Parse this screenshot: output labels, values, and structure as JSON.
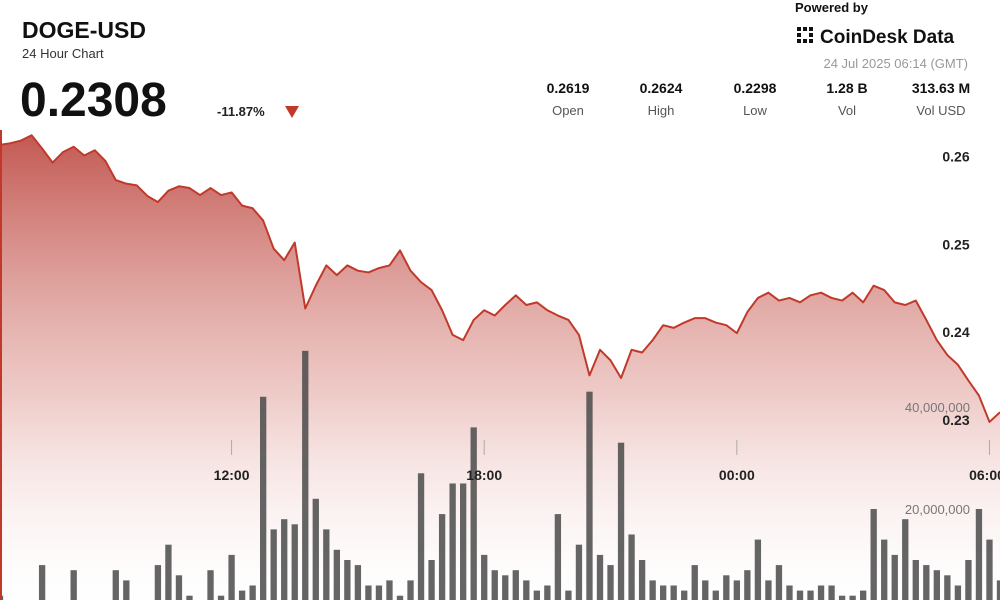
{
  "header": {
    "symbol": "DOGE-USD",
    "subtitle": "24 Hour Chart",
    "price": "0.2308",
    "change": "-11.87%",
    "powered_by": "Powered by",
    "brand": "CoinDesk Data",
    "timestamp": "24 Jul 2025 06:14 (GMT)",
    "stats": [
      {
        "value": "0.2619",
        "label": "Open"
      },
      {
        "value": "0.2624",
        "label": "High"
      },
      {
        "value": "0.2298",
        "label": "Low"
      },
      {
        "value": "1.28 B",
        "label": "Vol"
      },
      {
        "value": "313.63 M",
        "label": "Vol USD"
      }
    ]
  },
  "chart_data": {
    "type": "line",
    "x": [
      "06:30",
      "06:45",
      "07:00",
      "07:15",
      "07:30",
      "07:45",
      "08:00",
      "08:15",
      "08:30",
      "08:45",
      "09:00",
      "09:15",
      "09:30",
      "09:45",
      "10:00",
      "10:15",
      "10:30",
      "10:45",
      "11:00",
      "11:15",
      "11:30",
      "11:45",
      "12:00",
      "12:15",
      "12:30",
      "12:45",
      "13:00",
      "13:15",
      "13:30",
      "13:45",
      "14:00",
      "14:15",
      "14:30",
      "14:45",
      "15:00",
      "15:15",
      "15:30",
      "15:45",
      "16:00",
      "16:15",
      "16:30",
      "16:45",
      "17:00",
      "17:15",
      "17:30",
      "17:45",
      "18:00",
      "18:15",
      "18:30",
      "18:45",
      "19:00",
      "19:15",
      "19:30",
      "19:45",
      "20:00",
      "20:15",
      "20:30",
      "20:45",
      "21:00",
      "21:15",
      "21:30",
      "21:45",
      "22:00",
      "22:15",
      "22:30",
      "22:45",
      "23:00",
      "23:15",
      "23:30",
      "23:45",
      "00:00",
      "00:15",
      "00:30",
      "00:45",
      "01:00",
      "01:15",
      "01:30",
      "01:45",
      "02:00",
      "02:15",
      "02:30",
      "02:45",
      "03:00",
      "03:15",
      "03:30",
      "03:45",
      "04:00",
      "04:15",
      "04:30",
      "04:45",
      "05:00",
      "05:15",
      "05:30",
      "05:45",
      "06:00",
      "06:15"
    ],
    "series": [
      {
        "name": "Price",
        "type": "line",
        "axis": "y",
        "color": "#c0392b",
        "values": [
          0.2613,
          0.2615,
          0.2618,
          0.2624,
          0.2609,
          0.2593,
          0.2605,
          0.2611,
          0.2601,
          0.2607,
          0.2595,
          0.2573,
          0.2569,
          0.2567,
          0.2555,
          0.2548,
          0.2561,
          0.2566,
          0.2564,
          0.2556,
          0.2564,
          0.2556,
          0.2559,
          0.2544,
          0.2541,
          0.2527,
          0.2495,
          0.2482,
          0.2502,
          0.2427,
          0.2453,
          0.2476,
          0.2465,
          0.2476,
          0.247,
          0.2468,
          0.2473,
          0.2476,
          0.2493,
          0.247,
          0.2457,
          0.2448,
          0.2425,
          0.2397,
          0.2391,
          0.2414,
          0.2425,
          0.2419,
          0.2431,
          0.2442,
          0.2431,
          0.2434,
          0.2425,
          0.2419,
          0.2414,
          0.2397,
          0.2351,
          0.238,
          0.2368,
          0.2348,
          0.238,
          0.2377,
          0.2391,
          0.2408,
          0.2405,
          0.2411,
          0.2416,
          0.2416,
          0.2411,
          0.2408,
          0.2399,
          0.2423,
          0.2439,
          0.2445,
          0.2436,
          0.2439,
          0.2434,
          0.2442,
          0.2445,
          0.2439,
          0.2436,
          0.2445,
          0.2434,
          0.2453,
          0.2448,
          0.2434,
          0.2431,
          0.2436,
          0.2414,
          0.2391,
          0.2374,
          0.2363,
          0.2345,
          0.2328,
          0.2298,
          0.2309
        ]
      },
      {
        "name": "Volume",
        "type": "bar",
        "axis": "y2",
        "color": "#4a4a4a",
        "values": [
          3000000,
          2000000,
          1000000,
          2000000,
          9000000,
          2000000,
          1000000,
          8000000,
          1000000,
          1000000,
          1000000,
          8000000,
          6000000,
          2000000,
          2000000,
          9000000,
          13000000,
          7000000,
          3000000,
          1000000,
          8000000,
          3000000,
          11000000,
          4000000,
          5000000,
          42000000,
          16000000,
          18000000,
          17000000,
          51000000,
          22000000,
          16000000,
          12000000,
          10000000,
          9000000,
          5000000,
          5000000,
          6000000,
          3000000,
          6000000,
          27000000,
          10000000,
          19000000,
          25000000,
          25000000,
          36000000,
          11000000,
          8000000,
          7000000,
          8000000,
          6000000,
          4000000,
          5000000,
          19000000,
          4000000,
          13000000,
          43000000,
          11000000,
          9000000,
          33000000,
          15000000,
          10000000,
          6000000,
          5000000,
          5000000,
          4000000,
          9000000,
          6000000,
          4000000,
          7000000,
          6000000,
          8000000,
          14000000,
          6000000,
          9000000,
          5000000,
          4000000,
          4000000,
          5000000,
          5000000,
          3000000,
          3000000,
          4000000,
          20000000,
          14000000,
          11000000,
          18000000,
          10000000,
          9000000,
          8000000,
          7000000,
          5000000,
          10000000,
          20000000,
          14000000,
          6000000
        ]
      }
    ],
    "xlim": [
      "06:30",
      "06:15"
    ],
    "xticks": [
      "12:00",
      "18:00",
      "00:00",
      "06:00"
    ],
    "ylim": [
      0.2083,
      0.263
    ],
    "yticks": [
      0.23,
      0.24,
      0.25,
      0.26
    ],
    "y2lim": [
      0,
      94300000
    ],
    "y2ticks": [
      {
        "value": 20000000,
        "label": "20,000,000"
      },
      {
        "value": 40000000,
        "label": "40,000,000"
      }
    ]
  }
}
